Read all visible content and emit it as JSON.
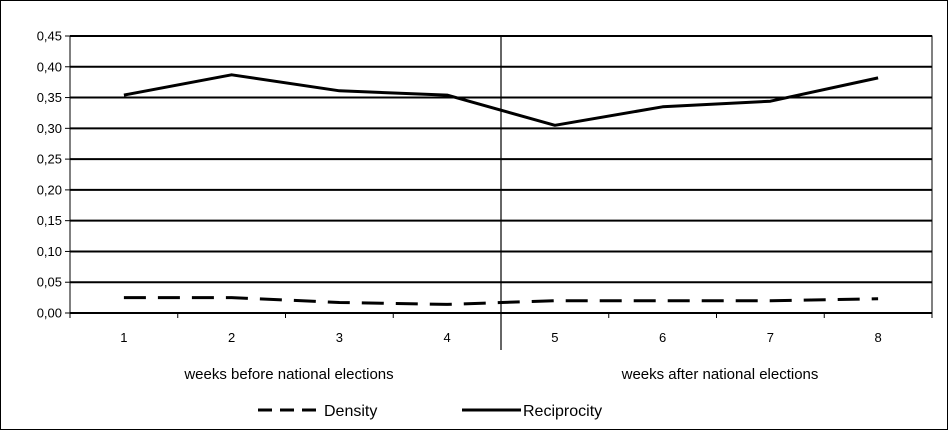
{
  "chart_data": {
    "type": "line",
    "categories": [
      "1",
      "2",
      "3",
      "4",
      "5",
      "6",
      "7",
      "8"
    ],
    "y_tick_labels": [
      "0,00",
      "0,05",
      "0,10",
      "0,15",
      "0,20",
      "0,25",
      "0,30",
      "0,35",
      "0,40",
      "0,45"
    ],
    "ylim": [
      0,
      0.45
    ],
    "grid": "horizontal",
    "legend_position": "bottom",
    "series": [
      {
        "name": "Density",
        "style": "dashed",
        "color": "#000000",
        "values": [
          0.025,
          0.025,
          0.017,
          0.014,
          0.02,
          0.02,
          0.02,
          0.023
        ]
      },
      {
        "name": "Reciprocity",
        "style": "solid",
        "color": "#000000",
        "values": [
          0.354,
          0.387,
          0.361,
          0.354,
          0.305,
          0.335,
          0.344,
          0.382
        ]
      }
    ],
    "groups": [
      {
        "label": "weeks before national elections"
      },
      {
        "label": "weeks after national elections"
      }
    ]
  }
}
